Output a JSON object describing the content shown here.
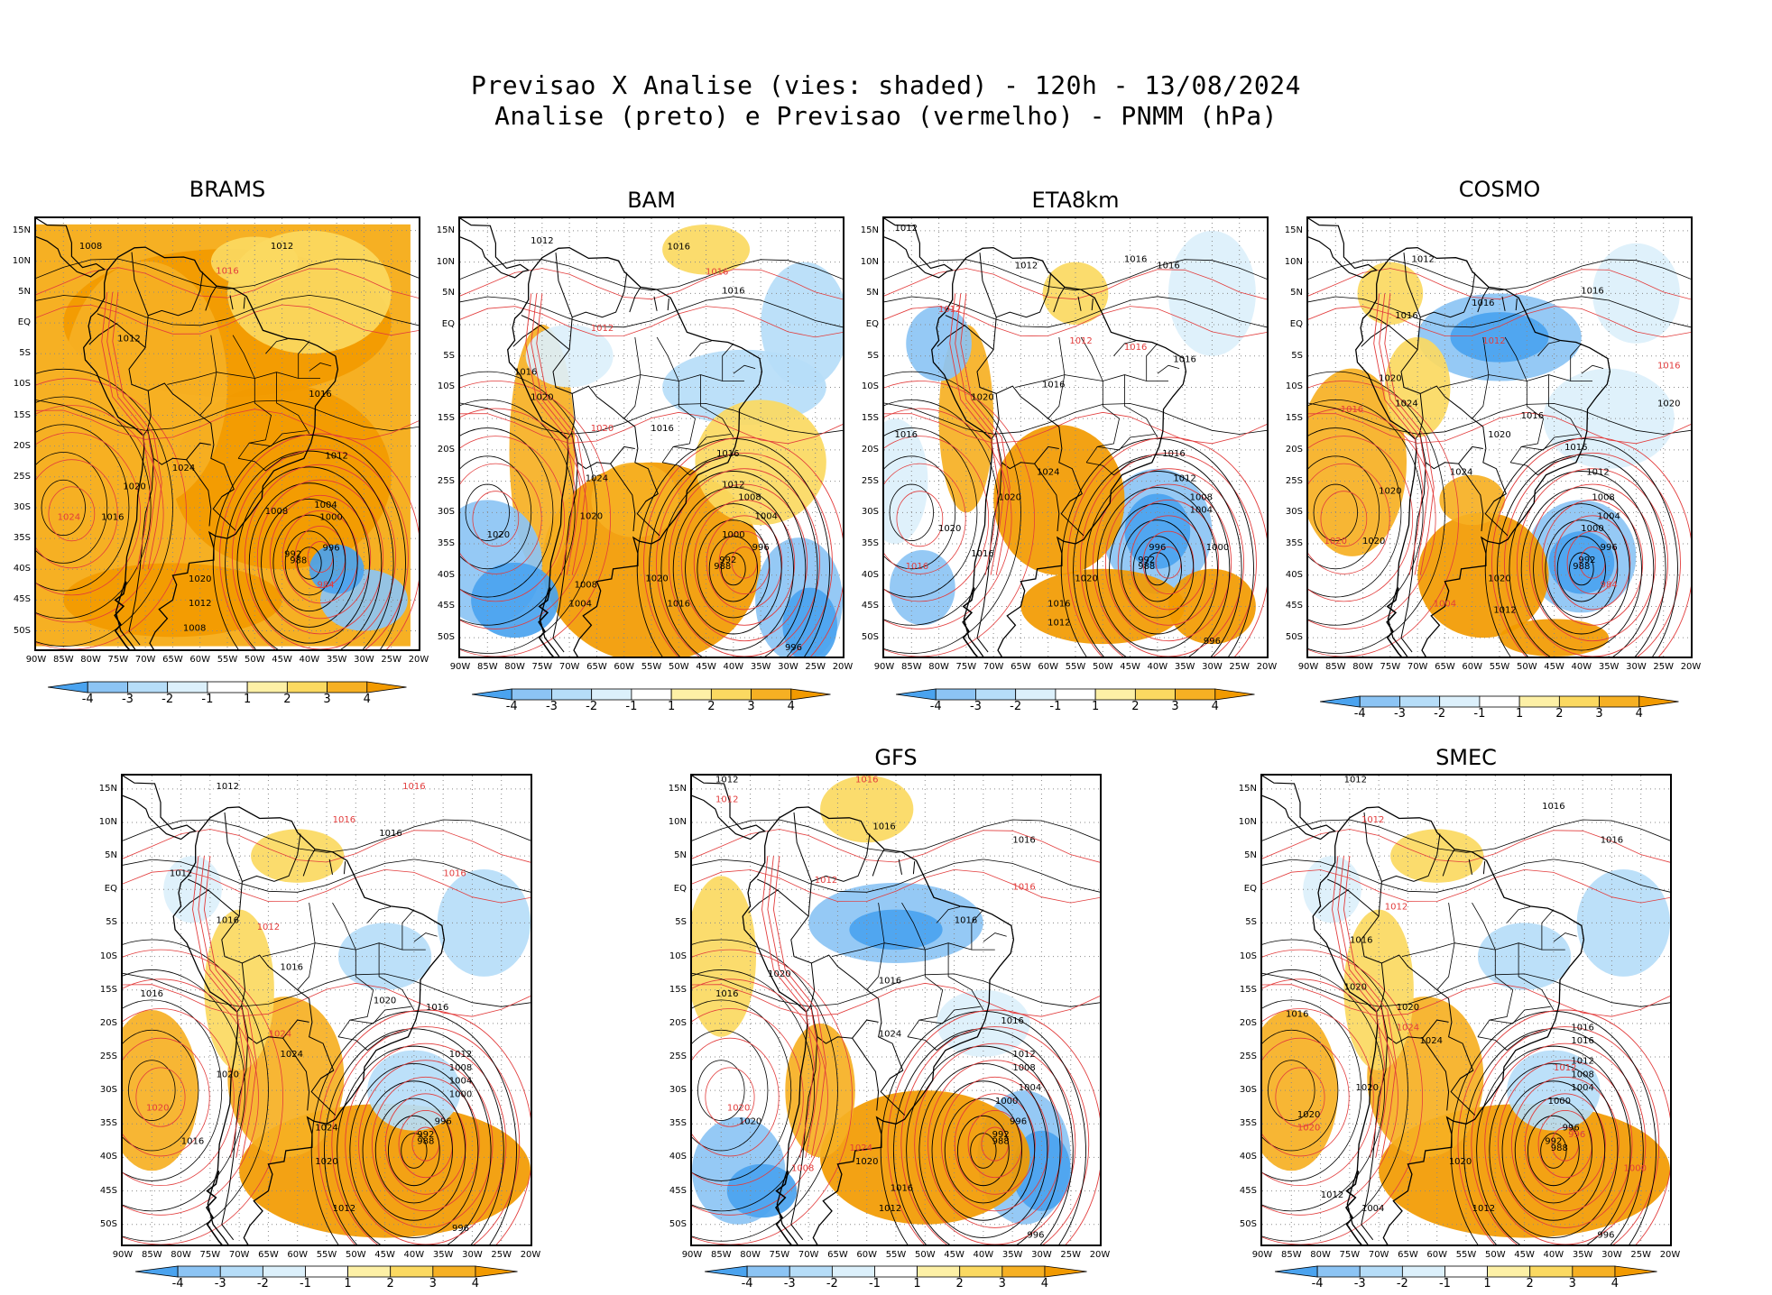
{
  "header": {
    "title_line1": "Previsao X Analise (vies: shaded) - 120h - 13/08/2024",
    "title_line2": "Analise (preto) e Previsao (vermelho) - PNMM (hPa)"
  },
  "axes": {
    "lat_labels": [
      "15N",
      "10N",
      "5N",
      "EQ",
      "5S",
      "10S",
      "15S",
      "20S",
      "25S",
      "30S",
      "35S",
      "40S",
      "45S",
      "50S"
    ],
    "lon_labels": [
      "90W",
      "85W",
      "80W",
      "75W",
      "70W",
      "65W",
      "60W",
      "55W",
      "50W",
      "45W",
      "40W",
      "35W",
      "30W",
      "25W",
      "20W"
    ]
  },
  "colorbar": {
    "labels": [
      "-4",
      "-3",
      "-2",
      "-1",
      "1",
      "2",
      "3",
      "4"
    ],
    "colors": [
      "#4aa3ef",
      "#8cc4f4",
      "#b6ddf8",
      "#dcf0fb",
      "#ffffff",
      "#fdf0a6",
      "#fbd961",
      "#f6b023",
      "#f29a00"
    ]
  },
  "contour_colors": {
    "analysis": "#000000",
    "forecast": "#e23c3c"
  },
  "panels": [
    {
      "id": "brams",
      "title": "BRAMS",
      "bias": "warm-full"
    },
    {
      "id": "bam",
      "title": "BAM",
      "bias": "mixed-warm"
    },
    {
      "id": "eta8km",
      "title": "ETA8km",
      "bias": "mixed-cold-atlantic"
    },
    {
      "id": "cosmo",
      "title": "COSMO",
      "bias": "mixed-cold"
    },
    {
      "id": "model5",
      "title": "",
      "bias": "mixed-warm-south"
    },
    {
      "id": "gfs",
      "title": "GFS",
      "bias": "mixed-cold-south"
    },
    {
      "id": "smec",
      "title": "SMEC",
      "bias": "mixed-warm-south"
    }
  ],
  "isobar_labels": {
    "brams": [
      {
        "t": "1008",
        "lon": -80,
        "lat": 12,
        "c": "a"
      },
      {
        "t": "1012",
        "lon": -45,
        "lat": 12,
        "c": "a"
      },
      {
        "t": "1016",
        "lon": -55,
        "lat": 8,
        "c": "f"
      },
      {
        "t": "1012",
        "lon": -73,
        "lat": -3,
        "c": "a"
      },
      {
        "t": "1016",
        "lon": -38,
        "lat": -12,
        "c": "a"
      },
      {
        "t": "1024",
        "lon": -63,
        "lat": -24,
        "c": "a"
      },
      {
        "t": "1020",
        "lon": -72,
        "lat": -27,
        "c": "a"
      },
      {
        "t": "1024",
        "lon": -84,
        "lat": -32,
        "c": "f"
      },
      {
        "t": "1012",
        "lon": -35,
        "lat": -22,
        "c": "a"
      },
      {
        "t": "1008",
        "lon": -46,
        "lat": -31,
        "c": "a"
      },
      {
        "t": "1004",
        "lon": -37,
        "lat": -30,
        "c": "a"
      },
      {
        "t": "1000",
        "lon": -36,
        "lat": -32,
        "c": "a"
      },
      {
        "t": "996",
        "lon": -36,
        "lat": -37,
        "c": "a"
      },
      {
        "t": "992",
        "lon": -43,
        "lat": -38,
        "c": "a"
      },
      {
        "t": "988",
        "lon": -42,
        "lat": -39,
        "c": "a"
      },
      {
        "t": "984",
        "lon": -37,
        "lat": -43,
        "c": "f"
      },
      {
        "t": "1020",
        "lon": -60,
        "lat": -42,
        "c": "a"
      },
      {
        "t": "1012",
        "lon": -60,
        "lat": -46,
        "c": "a"
      },
      {
        "t": "1008",
        "lon": -61,
        "lat": -50,
        "c": "a"
      },
      {
        "t": "1016",
        "lon": -76,
        "lat": -32,
        "c": "a"
      }
    ],
    "bam": [
      {
        "t": "1012",
        "lon": -75,
        "lat": 13,
        "c": "a"
      },
      {
        "t": "1016",
        "lon": -50,
        "lat": 12,
        "c": "a"
      },
      {
        "t": "1016",
        "lon": -43,
        "lat": 8,
        "c": "f"
      },
      {
        "t": "1016",
        "lon": -40,
        "lat": 5,
        "c": "a"
      },
      {
        "t": "1012",
        "lon": -64,
        "lat": -1,
        "c": "f"
      },
      {
        "t": "1016",
        "lon": -78,
        "lat": -8,
        "c": "a"
      },
      {
        "t": "1020",
        "lon": -75,
        "lat": -12,
        "c": "a"
      },
      {
        "t": "1020",
        "lon": -64,
        "lat": -17,
        "c": "f"
      },
      {
        "t": "1016",
        "lon": -53,
        "lat": -17,
        "c": "a"
      },
      {
        "t": "1016",
        "lon": -41,
        "lat": -21,
        "c": "a"
      },
      {
        "t": "1012",
        "lon": -40,
        "lat": -26,
        "c": "a"
      },
      {
        "t": "1008",
        "lon": -37,
        "lat": -28,
        "c": "a"
      },
      {
        "t": "1004",
        "lon": -34,
        "lat": -31,
        "c": "a"
      },
      {
        "t": "1000",
        "lon": -40,
        "lat": -34,
        "c": "a"
      },
      {
        "t": "996",
        "lon": -35,
        "lat": -36,
        "c": "a"
      },
      {
        "t": "992",
        "lon": -41,
        "lat": -38,
        "c": "a"
      },
      {
        "t": "988",
        "lon": -42,
        "lat": -39,
        "c": "a"
      },
      {
        "t": "1024",
        "lon": -65,
        "lat": -25,
        "c": "a"
      },
      {
        "t": "1020",
        "lon": -66,
        "lat": -31,
        "c": "a"
      },
      {
        "t": "1020",
        "lon": -83,
        "lat": -34,
        "c": "a"
      },
      {
        "t": "1020",
        "lon": -54,
        "lat": -41,
        "c": "a"
      },
      {
        "t": "1016",
        "lon": -50,
        "lat": -45,
        "c": "a"
      },
      {
        "t": "1008",
        "lon": -67,
        "lat": -42,
        "c": "a"
      },
      {
        "t": "1004",
        "lon": -68,
        "lat": -45,
        "c": "a"
      },
      {
        "t": "996",
        "lon": -29,
        "lat": -52,
        "c": "a"
      }
    ],
    "eta8km": [
      {
        "t": "1012",
        "lon": -86,
        "lat": 15,
        "c": "a"
      },
      {
        "t": "1012",
        "lon": -64,
        "lat": 9,
        "c": "a"
      },
      {
        "t": "1016",
        "lon": -44,
        "lat": 10,
        "c": "a"
      },
      {
        "t": "1016",
        "lon": -38,
        "lat": 9,
        "c": "a"
      },
      {
        "t": "1012",
        "lon": -78,
        "lat": 2,
        "c": "f"
      },
      {
        "t": "1012",
        "lon": -54,
        "lat": -3,
        "c": "f"
      },
      {
        "t": "1016",
        "lon": -44,
        "lat": -4,
        "c": "f"
      },
      {
        "t": "1016",
        "lon": -35,
        "lat": -6,
        "c": "a"
      },
      {
        "t": "1020",
        "lon": -72,
        "lat": -12,
        "c": "a"
      },
      {
        "t": "1016",
        "lon": -59,
        "lat": -10,
        "c": "a"
      },
      {
        "t": "1016",
        "lon": -86,
        "lat": -18,
        "c": "a"
      },
      {
        "t": "1024",
        "lon": -60,
        "lat": -24,
        "c": "a"
      },
      {
        "t": "1016",
        "lon": -37,
        "lat": -21,
        "c": "a"
      },
      {
        "t": "1012",
        "lon": -35,
        "lat": -25,
        "c": "a"
      },
      {
        "t": "1008",
        "lon": -32,
        "lat": -28,
        "c": "a"
      },
      {
        "t": "1004",
        "lon": -32,
        "lat": -30,
        "c": "a"
      },
      {
        "t": "1000",
        "lon": -29,
        "lat": -36,
        "c": "a"
      },
      {
        "t": "996",
        "lon": -40,
        "lat": -36,
        "c": "a"
      },
      {
        "t": "992",
        "lon": -42,
        "lat": -38,
        "c": "a"
      },
      {
        "t": "988",
        "lon": -42,
        "lat": -39,
        "c": "a"
      },
      {
        "t": "1020",
        "lon": -67,
        "lat": -28,
        "c": "a"
      },
      {
        "t": "1020",
        "lon": -78,
        "lat": -33,
        "c": "a"
      },
      {
        "t": "1016",
        "lon": -72,
        "lat": -37,
        "c": "a"
      },
      {
        "t": "1016",
        "lon": -84,
        "lat": -39,
        "c": "f"
      },
      {
        "t": "1020",
        "lon": -53,
        "lat": -41,
        "c": "a"
      },
      {
        "t": "1016",
        "lon": -58,
        "lat": -45,
        "c": "a"
      },
      {
        "t": "1012",
        "lon": -58,
        "lat": -48,
        "c": "a"
      },
      {
        "t": "996",
        "lon": -30,
        "lat": -51,
        "c": "a"
      }
    ],
    "cosmo": [
      {
        "t": "1012",
        "lon": -69,
        "lat": 10,
        "c": "a"
      },
      {
        "t": "1016",
        "lon": -58,
        "lat": 3,
        "c": "a"
      },
      {
        "t": "1016",
        "lon": -38,
        "lat": 5,
        "c": "a"
      },
      {
        "t": "1016",
        "lon": -72,
        "lat": 1,
        "c": "a"
      },
      {
        "t": "1012",
        "lon": -56,
        "lat": -3,
        "c": "f"
      },
      {
        "t": "1016",
        "lon": -24,
        "lat": -7,
        "c": "f"
      },
      {
        "t": "1020",
        "lon": -75,
        "lat": -9,
        "c": "a"
      },
      {
        "t": "1016",
        "lon": -82,
        "lat": -14,
        "c": "f"
      },
      {
        "t": "1024",
        "lon": -72,
        "lat": -13,
        "c": "a"
      },
      {
        "t": "1016",
        "lon": -49,
        "lat": -15,
        "c": "a"
      },
      {
        "t": "1020",
        "lon": -24,
        "lat": -13,
        "c": "a"
      },
      {
        "t": "1020",
        "lon": -55,
        "lat": -18,
        "c": "a"
      },
      {
        "t": "1024",
        "lon": -62,
        "lat": -24,
        "c": "a"
      },
      {
        "t": "1016",
        "lon": -41,
        "lat": -20,
        "c": "a"
      },
      {
        "t": "1012",
        "lon": -37,
        "lat": -24,
        "c": "a"
      },
      {
        "t": "1008",
        "lon": -36,
        "lat": -28,
        "c": "a"
      },
      {
        "t": "1004",
        "lon": -35,
        "lat": -31,
        "c": "a"
      },
      {
        "t": "1000",
        "lon": -38,
        "lat": -33,
        "c": "a"
      },
      {
        "t": "996",
        "lon": -35,
        "lat": -36,
        "c": "a"
      },
      {
        "t": "992",
        "lon": -39,
        "lat": -38,
        "c": "a"
      },
      {
        "t": "988",
        "lon": -40,
        "lat": -39,
        "c": "a"
      },
      {
        "t": "984",
        "lon": -35,
        "lat": -42,
        "c": "f"
      },
      {
        "t": "1020",
        "lon": -75,
        "lat": -27,
        "c": "a"
      },
      {
        "t": "1020",
        "lon": -78,
        "lat": -35,
        "c": "a"
      },
      {
        "t": "1020",
        "lon": -85,
        "lat": -35,
        "c": "f"
      },
      {
        "t": "1020",
        "lon": -55,
        "lat": -41,
        "c": "a"
      },
      {
        "t": "1012",
        "lon": -54,
        "lat": -46,
        "c": "a"
      },
      {
        "t": "1004",
        "lon": -65,
        "lat": -45,
        "c": "f"
      }
    ],
    "model5": [
      {
        "t": "1012",
        "lon": -72,
        "lat": 15,
        "c": "a"
      },
      {
        "t": "1016",
        "lon": -40,
        "lat": 15,
        "c": "f"
      },
      {
        "t": "1016",
        "lon": -52,
        "lat": 10,
        "c": "f"
      },
      {
        "t": "1016",
        "lon": -44,
        "lat": 8,
        "c": "a"
      },
      {
        "t": "1012",
        "lon": -80,
        "lat": 2,
        "c": "a"
      },
      {
        "t": "1016",
        "lon": -33,
        "lat": 2,
        "c": "f"
      },
      {
        "t": "1016",
        "lon": -72,
        "lat": -5,
        "c": "a"
      },
      {
        "t": "1012",
        "lon": -65,
        "lat": -6,
        "c": "f"
      },
      {
        "t": "1016",
        "lon": -85,
        "lat": -16,
        "c": "a"
      },
      {
        "t": "1016",
        "lon": -61,
        "lat": -12,
        "c": "a"
      },
      {
        "t": "1020",
        "lon": -45,
        "lat": -17,
        "c": "a"
      },
      {
        "t": "1016",
        "lon": -36,
        "lat": -18,
        "c": "a"
      },
      {
        "t": "1024",
        "lon": -63,
        "lat": -22,
        "c": "f"
      },
      {
        "t": "1024",
        "lon": -61,
        "lat": -25,
        "c": "a"
      },
      {
        "t": "1020",
        "lon": -72,
        "lat": -28,
        "c": "a"
      },
      {
        "t": "1020",
        "lon": -84,
        "lat": -33,
        "c": "f"
      },
      {
        "t": "1012",
        "lon": -32,
        "lat": -25,
        "c": "a"
      },
      {
        "t": "1008",
        "lon": -32,
        "lat": -27,
        "c": "a"
      },
      {
        "t": "1004",
        "lon": -32,
        "lat": -29,
        "c": "a"
      },
      {
        "t": "1000",
        "lon": -32,
        "lat": -31,
        "c": "a"
      },
      {
        "t": "996",
        "lon": -35,
        "lat": -35,
        "c": "a"
      },
      {
        "t": "992",
        "lon": -38,
        "lat": -37,
        "c": "a"
      },
      {
        "t": "988",
        "lon": -38,
        "lat": -38,
        "c": "a"
      },
      {
        "t": "1024",
        "lon": -55,
        "lat": -36,
        "c": "a"
      },
      {
        "t": "1020",
        "lon": -55,
        "lat": -41,
        "c": "a"
      },
      {
        "t": "1012",
        "lon": -52,
        "lat": -48,
        "c": "a"
      },
      {
        "t": "1016",
        "lon": -78,
        "lat": -38,
        "c": "a"
      },
      {
        "t": "996",
        "lon": -32,
        "lat": -51,
        "c": "a"
      }
    ],
    "gfs": [
      {
        "t": "1012",
        "lon": -84,
        "lat": 16,
        "c": "a"
      },
      {
        "t": "1012",
        "lon": -84,
        "lat": 13,
        "c": "f"
      },
      {
        "t": "1016",
        "lon": -60,
        "lat": 16,
        "c": "f"
      },
      {
        "t": "1016",
        "lon": -57,
        "lat": 9,
        "c": "a"
      },
      {
        "t": "1016",
        "lon": -33,
        "lat": 7,
        "c": "a"
      },
      {
        "t": "1012",
        "lon": -67,
        "lat": 1,
        "c": "f"
      },
      {
        "t": "1016",
        "lon": -33,
        "lat": 0,
        "c": "f"
      },
      {
        "t": "1016",
        "lon": -43,
        "lat": -5,
        "c": "a"
      },
      {
        "t": "1020",
        "lon": -75,
        "lat": -13,
        "c": "a"
      },
      {
        "t": "1016",
        "lon": -84,
        "lat": -16,
        "c": "a"
      },
      {
        "t": "1016",
        "lon": -56,
        "lat": -14,
        "c": "a"
      },
      {
        "t": "1016",
        "lon": -35,
        "lat": -20,
        "c": "a"
      },
      {
        "t": "1024",
        "lon": -56,
        "lat": -22,
        "c": "a"
      },
      {
        "t": "1012",
        "lon": -33,
        "lat": -25,
        "c": "a"
      },
      {
        "t": "1008",
        "lon": -33,
        "lat": -27,
        "c": "a"
      },
      {
        "t": "1004",
        "lon": -32,
        "lat": -30,
        "c": "a"
      },
      {
        "t": "1000",
        "lon": -36,
        "lat": -32,
        "c": "a"
      },
      {
        "t": "996",
        "lon": -34,
        "lat": -35,
        "c": "a"
      },
      {
        "t": "992",
        "lon": -37,
        "lat": -37,
        "c": "a"
      },
      {
        "t": "988",
        "lon": -37,
        "lat": -38,
        "c": "a"
      },
      {
        "t": "1020",
        "lon": -82,
        "lat": -33,
        "c": "f"
      },
      {
        "t": "1020",
        "lon": -80,
        "lat": -35,
        "c": "a"
      },
      {
        "t": "1024",
        "lon": -61,
        "lat": -39,
        "c": "f"
      },
      {
        "t": "1020",
        "lon": -60,
        "lat": -41,
        "c": "a"
      },
      {
        "t": "1016",
        "lon": -54,
        "lat": -45,
        "c": "a"
      },
      {
        "t": "1012",
        "lon": -56,
        "lat": -48,
        "c": "a"
      },
      {
        "t": "1008",
        "lon": -71,
        "lat": -42,
        "c": "f"
      },
      {
        "t": "996",
        "lon": -31,
        "lat": -52,
        "c": "a"
      }
    ],
    "smec": [
      {
        "t": "1012",
        "lon": -74,
        "lat": 16,
        "c": "a"
      },
      {
        "t": "1012",
        "lon": -71,
        "lat": 10,
        "c": "f"
      },
      {
        "t": "1016",
        "lon": -40,
        "lat": 12,
        "c": "a"
      },
      {
        "t": "1016",
        "lon": -30,
        "lat": 7,
        "c": "a"
      },
      {
        "t": "1012",
        "lon": -67,
        "lat": -3,
        "c": "f"
      },
      {
        "t": "1016",
        "lon": -73,
        "lat": -8,
        "c": "a"
      },
      {
        "t": "1020",
        "lon": -74,
        "lat": -15,
        "c": "a"
      },
      {
        "t": "1016",
        "lon": -84,
        "lat": -19,
        "c": "a"
      },
      {
        "t": "1020",
        "lon": -65,
        "lat": -18,
        "c": "a"
      },
      {
        "t": "1024",
        "lon": -65,
        "lat": -21,
        "c": "f"
      },
      {
        "t": "1024",
        "lon": -61,
        "lat": -23,
        "c": "a"
      },
      {
        "t": "1016",
        "lon": -35,
        "lat": -21,
        "c": "a"
      },
      {
        "t": "1016",
        "lon": -35,
        "lat": -23,
        "c": "a"
      },
      {
        "t": "1012",
        "lon": -38,
        "lat": -27,
        "c": "f"
      },
      {
        "t": "1012",
        "lon": -35,
        "lat": -26,
        "c": "a"
      },
      {
        "t": "1008",
        "lon": -35,
        "lat": -28,
        "c": "a"
      },
      {
        "t": "1004",
        "lon": -35,
        "lat": -30,
        "c": "a"
      },
      {
        "t": "1000",
        "lon": -39,
        "lat": -32,
        "c": "a"
      },
      {
        "t": "996",
        "lon": -37,
        "lat": -36,
        "c": "a"
      },
      {
        "t": "992",
        "lon": -40,
        "lat": -38,
        "c": "a"
      },
      {
        "t": "988",
        "lon": -39,
        "lat": -39,
        "c": "a"
      },
      {
        "t": "996",
        "lon": -36,
        "lat": -37,
        "c": "f"
      },
      {
        "t": "1020",
        "lon": -72,
        "lat": -30,
        "c": "a"
      },
      {
        "t": "1020",
        "lon": -82,
        "lat": -34,
        "c": "a"
      },
      {
        "t": "1020",
        "lon": -82,
        "lat": -36,
        "c": "f"
      },
      {
        "t": "1020",
        "lon": -56,
        "lat": -41,
        "c": "a"
      },
      {
        "t": "1012",
        "lon": -78,
        "lat": -46,
        "c": "a"
      },
      {
        "t": "1004",
        "lon": -71,
        "lat": -48,
        "c": "a"
      },
      {
        "t": "1012",
        "lon": -52,
        "lat": -48,
        "c": "a"
      },
      {
        "t": "1000",
        "lon": -26,
        "lat": -42,
        "c": "f"
      },
      {
        "t": "996",
        "lon": -31,
        "lat": -52,
        "c": "a"
      }
    ]
  }
}
